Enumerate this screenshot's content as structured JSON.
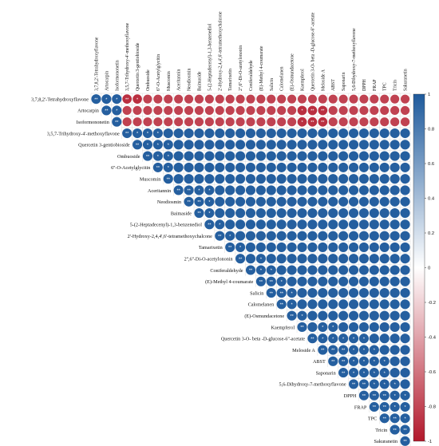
{
  "chart_data": {
    "type": "heatmap",
    "variables": [
      "3,7,8,2'-Tetrahydroxyflavone",
      "Artocarpin",
      "Isoformononetin",
      "3,5,7-Trihydroxy-4'-methoxyflavone",
      "Quercetin 3-gentiobioside",
      "Ombuoside",
      "6''-O-Acetylglycitin",
      "Muscomin",
      "Aceritannin",
      "Neodiosmin",
      "Baimaside",
      "5-(2-Heptadecenyl)-1,3-benzenediol",
      "2'-Hydroxy-2,4,4',6'-tetramethoxychalcone",
      "Tamarixetin",
      "2'',6''-Di-O-acetylononin",
      "Coniferaldehyde",
      "(E)-Methyl 4-coumarate",
      "Salicin",
      "Calomelanen",
      "(E)-Osmundacetone",
      "Kaempferol",
      "Quercetin 3-O- beta -D-glucose-6''-acetate",
      "Meloside A",
      "ABST",
      "Saponarin",
      "5,6-Dihydroxy-7-methoxyflavone",
      "DPPH",
      "FRAP",
      "TPC",
      "Tricin",
      "Sakuranetin"
    ],
    "matrix_form": "upper-triangle",
    "blocks": [
      {
        "rows": [
          0,
          2
        ],
        "cols": [
          0,
          2
        ],
        "value": 0.97
      },
      {
        "rows": [
          0,
          2
        ],
        "cols": [
          3,
          30
        ],
        "value": -0.82
      },
      {
        "rows": [
          3,
          30
        ],
        "cols": [
          3,
          30
        ],
        "value": 0.97
      }
    ],
    "overrides": [
      {
        "row": 0,
        "col": 3,
        "value": -0.9
      },
      {
        "row": 0,
        "col": 4,
        "value": -0.9
      },
      {
        "row": 1,
        "col": 20,
        "value": -0.9
      },
      {
        "row": 1,
        "col": 21,
        "value": -0.9
      },
      {
        "row": 1,
        "col": 22,
        "value": -0.9
      },
      {
        "row": 2,
        "col": 20,
        "value": -0.9
      },
      {
        "row": 2,
        "col": 21,
        "value": -0.9
      },
      {
        "row": 2,
        "col": 22,
        "value": -0.9
      }
    ],
    "significance": [
      {
        "row": 0,
        "col": 0,
        "mark": "**"
      },
      {
        "row": 0,
        "col": 1,
        "mark": "*"
      },
      {
        "row": 0,
        "col": 2,
        "mark": "*"
      },
      {
        "row": 0,
        "col": 3,
        "mark": "**"
      },
      {
        "row": 0,
        "col": 4,
        "mark": "*"
      },
      {
        "row": 1,
        "col": 1,
        "mark": "**"
      },
      {
        "row": 1,
        "col": 2,
        "mark": "*"
      },
      {
        "row": 1,
        "col": 20,
        "mark": "*"
      },
      {
        "row": 1,
        "col": 21,
        "mark": "**"
      },
      {
        "row": 1,
        "col": 22,
        "mark": "**"
      },
      {
        "row": 2,
        "col": 2,
        "mark": "**"
      },
      {
        "row": 2,
        "col": 20,
        "mark": "*"
      },
      {
        "row": 2,
        "col": 21,
        "mark": "**"
      },
      {
        "row": 2,
        "col": 22,
        "mark": "**"
      },
      {
        "row": 3,
        "col": 3,
        "mark": "**"
      },
      {
        "row": 3,
        "col": 4,
        "mark": "*"
      },
      {
        "row": 3,
        "col": 5,
        "mark": "*"
      },
      {
        "row": 3,
        "col": 6,
        "mark": "*"
      },
      {
        "row": 4,
        "col": 4,
        "mark": "**"
      },
      {
        "row": 4,
        "col": 5,
        "mark": "*"
      },
      {
        "row": 4,
        "col": 6,
        "mark": "*"
      },
      {
        "row": 4,
        "col": 7,
        "mark": "*"
      },
      {
        "row": 5,
        "col": 5,
        "mark": "**"
      },
      {
        "row": 5,
        "col": 6,
        "mark": "*"
      },
      {
        "row": 5,
        "col": 7,
        "mark": "*"
      },
      {
        "row": 6,
        "col": 6,
        "mark": "**"
      },
      {
        "row": 6,
        "col": 7,
        "mark": "*"
      },
      {
        "row": 7,
        "col": 7,
        "mark": "**"
      },
      {
        "row": 8,
        "col": 8,
        "mark": "**"
      },
      {
        "row": 8,
        "col": 9,
        "mark": "**"
      },
      {
        "row": 8,
        "col": 10,
        "mark": "*"
      },
      {
        "row": 8,
        "col": 11,
        "mark": "*"
      },
      {
        "row": 9,
        "col": 9,
        "mark": "**"
      },
      {
        "row": 9,
        "col": 10,
        "mark": "**"
      },
      {
        "row": 9,
        "col": 11,
        "mark": "*"
      },
      {
        "row": 10,
        "col": 10,
        "mark": "**"
      },
      {
        "row": 10,
        "col": 11,
        "mark": "*"
      },
      {
        "row": 11,
        "col": 11,
        "mark": "**"
      },
      {
        "row": 11,
        "col": 12,
        "mark": "*"
      },
      {
        "row": 12,
        "col": 12,
        "mark": "**"
      },
      {
        "row": 12,
        "col": 13,
        "mark": "*"
      },
      {
        "row": 13,
        "col": 13,
        "mark": "**"
      },
      {
        "row": 13,
        "col": 14,
        "mark": "*"
      },
      {
        "row": 14,
        "col": 14,
        "mark": "**"
      },
      {
        "row": 14,
        "col": 16,
        "mark": "*"
      },
      {
        "row": 15,
        "col": 15,
        "mark": "**"
      },
      {
        "row": 15,
        "col": 16,
        "mark": "*"
      },
      {
        "row": 15,
        "col": 17,
        "mark": "*"
      },
      {
        "row": 16,
        "col": 16,
        "mark": "**"
      },
      {
        "row": 16,
        "col": 17,
        "mark": "**"
      },
      {
        "row": 16,
        "col": 18,
        "mark": "*"
      },
      {
        "row": 17,
        "col": 17,
        "mark": "**"
      },
      {
        "row": 17,
        "col": 18,
        "mark": "**"
      },
      {
        "row": 17,
        "col": 19,
        "mark": "*"
      },
      {
        "row": 18,
        "col": 18,
        "mark": "**"
      },
      {
        "row": 18,
        "col": 19,
        "mark": "*"
      },
      {
        "row": 19,
        "col": 19,
        "mark": "**"
      },
      {
        "row": 19,
        "col": 20,
        "mark": "*"
      },
      {
        "row": 20,
        "col": 20,
        "mark": "**"
      },
      {
        "row": 20,
        "col": 22,
        "mark": "*"
      },
      {
        "row": 20,
        "col": 23,
        "mark": "*"
      },
      {
        "row": 21,
        "col": 21,
        "mark": "**"
      },
      {
        "row": 21,
        "col": 22,
        "mark": "*"
      },
      {
        "row": 21,
        "col": 23,
        "mark": "*"
      },
      {
        "row": 21,
        "col": 24,
        "mark": "*"
      },
      {
        "row": 21,
        "col": 25,
        "mark": "*"
      },
      {
        "row": 21,
        "col": 26,
        "mark": "*"
      },
      {
        "row": 22,
        "col": 22,
        "mark": "**"
      },
      {
        "row": 22,
        "col": 23,
        "mark": "**"
      },
      {
        "row": 22,
        "col": 24,
        "mark": "**"
      },
      {
        "row": 22,
        "col": 25,
        "mark": "*"
      },
      {
        "row": 22,
        "col": 26,
        "mark": "*"
      },
      {
        "row": 22,
        "col": 27,
        "mark": "*"
      },
      {
        "row": 23,
        "col": 23,
        "mark": "**"
      },
      {
        "row": 23,
        "col": 24,
        "mark": "**"
      },
      {
        "row": 23,
        "col": 25,
        "mark": "*"
      },
      {
        "row": 23,
        "col": 26,
        "mark": "*"
      },
      {
        "row": 23,
        "col": 27,
        "mark": "*"
      },
      {
        "row": 23,
        "col": 28,
        "mark": "*"
      },
      {
        "row": 24,
        "col": 24,
        "mark": "**"
      },
      {
        "row": 24,
        "col": 25,
        "mark": "*"
      },
      {
        "row": 24,
        "col": 26,
        "mark": "*"
      },
      {
        "row": 24,
        "col": 27,
        "mark": "*"
      },
      {
        "row": 24,
        "col": 28,
        "mark": "*"
      },
      {
        "row": 25,
        "col": 25,
        "mark": "**"
      },
      {
        "row": 25,
        "col": 26,
        "mark": "**"
      },
      {
        "row": 25,
        "col": 27,
        "mark": "*"
      },
      {
        "row": 25,
        "col": 28,
        "mark": "*"
      },
      {
        "row": 25,
        "col": 29,
        "mark": "*"
      },
      {
        "row": 26,
        "col": 26,
        "mark": "**"
      },
      {
        "row": 26,
        "col": 27,
        "mark": "**"
      },
      {
        "row": 26,
        "col": 28,
        "mark": "**"
      },
      {
        "row": 26,
        "col": 29,
        "mark": "*"
      },
      {
        "row": 26,
        "col": 30,
        "mark": "*"
      },
      {
        "row": 27,
        "col": 27,
        "mark": "**"
      },
      {
        "row": 27,
        "col": 28,
        "mark": "**"
      },
      {
        "row": 27,
        "col": 29,
        "mark": "*"
      },
      {
        "row": 27,
        "col": 30,
        "mark": "*"
      },
      {
        "row": 28,
        "col": 28,
        "mark": "**"
      },
      {
        "row": 28,
        "col": 29,
        "mark": "**"
      },
      {
        "row": 28,
        "col": 30,
        "mark": "*"
      },
      {
        "row": 29,
        "col": 29,
        "mark": "**"
      },
      {
        "row": 29,
        "col": 30,
        "mark": "**"
      },
      {
        "row": 30,
        "col": 30,
        "mark": "**"
      }
    ],
    "colorbar": {
      "ticks": [
        1,
        0.8,
        0.6,
        0.4,
        0.2,
        0,
        -0.2,
        -0.4,
        -0.6,
        -0.8,
        -1
      ],
      "range": [
        -1,
        1
      ],
      "colors": {
        "negative": "#b2182b",
        "neutral": "#ffffff",
        "positive": "#1e5a9c"
      }
    },
    "grid": true,
    "legend": "right"
  }
}
